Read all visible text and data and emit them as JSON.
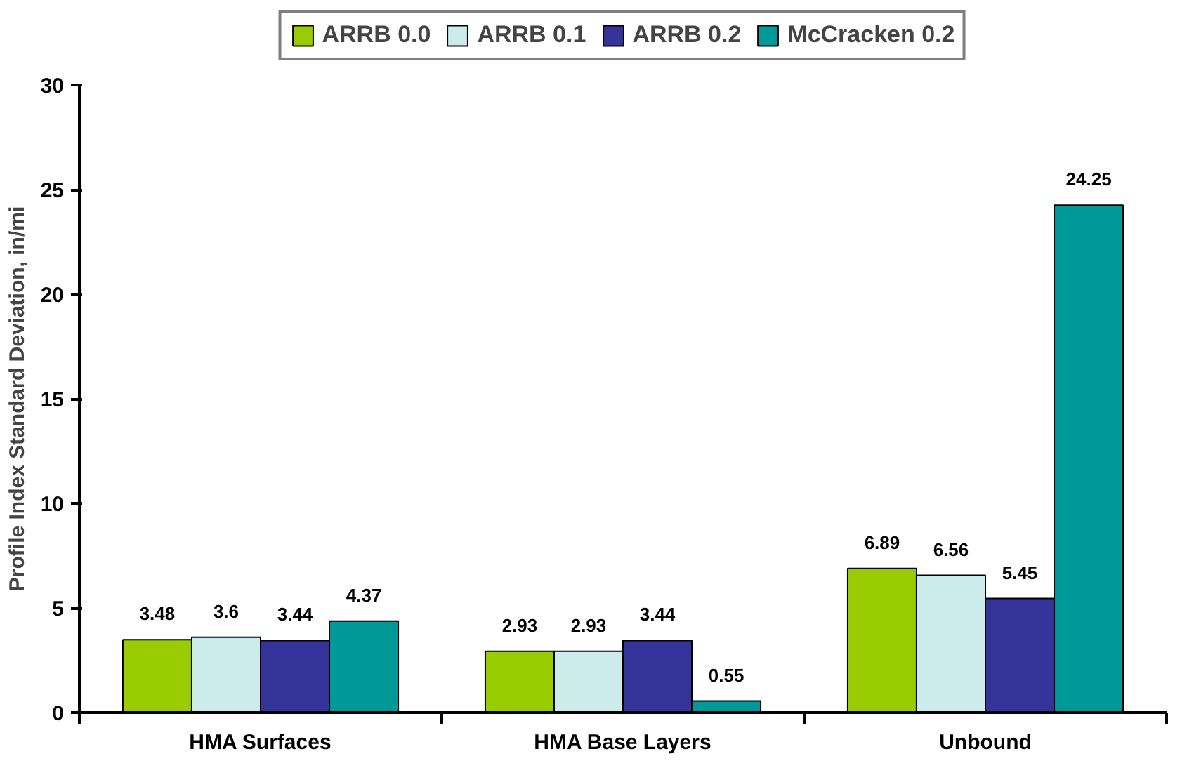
{
  "chart_data": {
    "type": "bar",
    "ylabel": "Profile Index Standard Deviation, in/mi",
    "categories": [
      "HMA Surfaces",
      "HMA Base Layers",
      "Unbound"
    ],
    "series": [
      {
        "name": "ARRB 0.0",
        "color": "#99cc00",
        "values": [
          3.48,
          2.93,
          6.89
        ]
      },
      {
        "name": "ARRB 0.1",
        "color": "#ccecec",
        "values": [
          3.6,
          2.93,
          6.56
        ]
      },
      {
        "name": "ARRB 0.2",
        "color": "#333399",
        "values": [
          3.44,
          3.44,
          5.45
        ]
      },
      {
        "name": "McCracken 0.2",
        "color": "#009999",
        "values": [
          4.37,
          0.55,
          24.25
        ]
      }
    ],
    "ylim": [
      0,
      30
    ],
    "yticks": [
      0,
      5,
      10,
      15,
      20,
      25,
      30
    ],
    "grid": false,
    "legend": "top",
    "data_labels": true
  }
}
